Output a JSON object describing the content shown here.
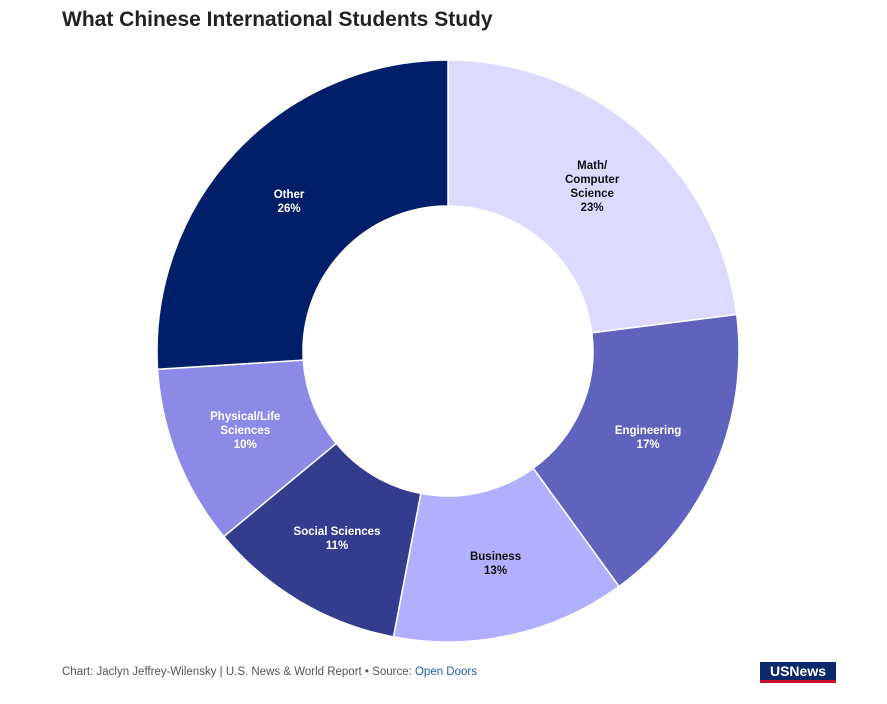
{
  "chart_data": {
    "type": "donut",
    "title": "What Chinese International Students Study",
    "categories": [
      "Math/ Computer Science",
      "Engineering",
      "Business",
      "Social Sciences",
      "Physical/Life Sciences",
      "Other"
    ],
    "values": [
      23,
      17,
      13,
      11,
      10,
      26
    ],
    "value_labels": [
      "23%",
      "17%",
      "13%",
      "11%",
      "10%",
      "26%"
    ],
    "colors": [
      "#dcdafe",
      "#6063bd",
      "#b1b0fe",
      "#343c8e",
      "#8b8ae6",
      "#001f68"
    ],
    "footer": "Chart: Jaclyn Jeffrey-Wilensky | U.S. News & World Report • Source:",
    "source_link": "Open Doors",
    "logo": "USNews"
  }
}
